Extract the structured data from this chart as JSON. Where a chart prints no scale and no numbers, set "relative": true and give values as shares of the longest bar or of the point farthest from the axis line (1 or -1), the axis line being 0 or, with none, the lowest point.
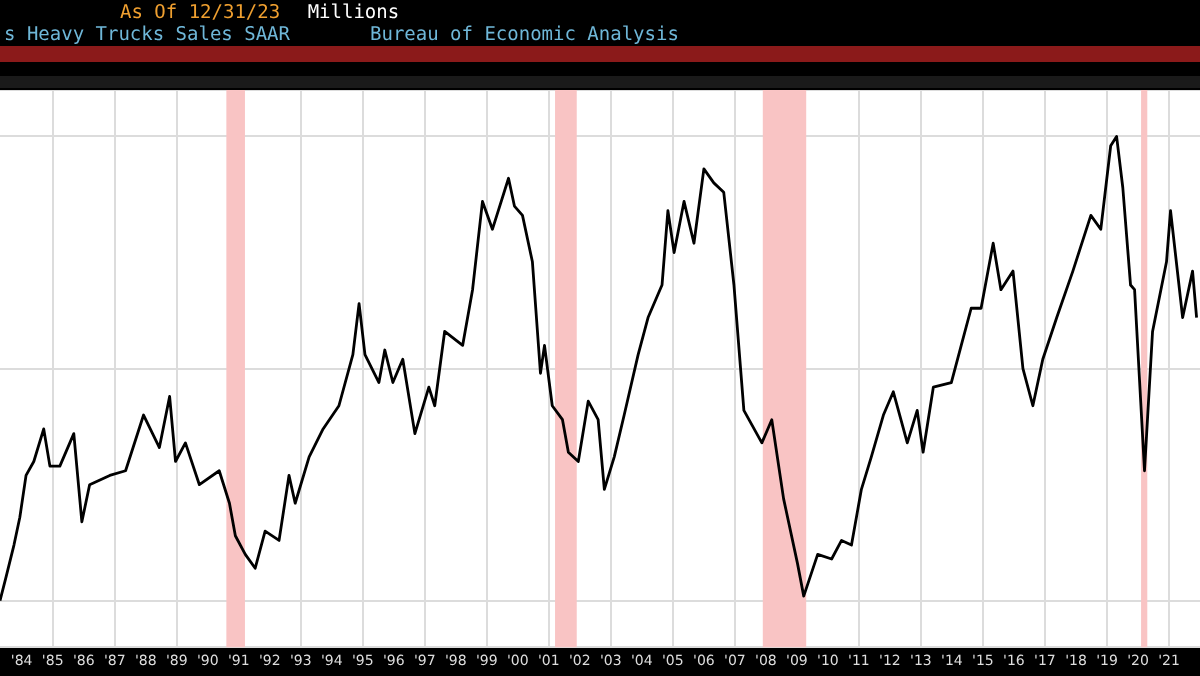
{
  "chart_data": {
    "type": "line",
    "title": "s Heavy Trucks Sales SAAR",
    "annotations": [
      "As Of 12/31/23",
      "Millions",
      "Bureau of Economic Analysis"
    ],
    "relative": true,
    "grid": true,
    "legend": false,
    "marker": "none",
    "line_style": "solid",
    "xlim": [
      1983.3,
      2022.0
    ],
    "xticks": [
      {
        "value": 1984,
        "label": "'84"
      },
      {
        "value": 1985,
        "label": "'85"
      },
      {
        "value": 1986,
        "label": "'86"
      },
      {
        "value": 1987,
        "label": "'87"
      },
      {
        "value": 1988,
        "label": "'88"
      },
      {
        "value": 1989,
        "label": "'89"
      },
      {
        "value": 1990,
        "label": "'90"
      },
      {
        "value": 1991,
        "label": "'91"
      },
      {
        "value": 1992,
        "label": "'92"
      },
      {
        "value": 1993,
        "label": "'93"
      },
      {
        "value": 1994,
        "label": "'94"
      },
      {
        "value": 1995,
        "label": "'95"
      },
      {
        "value": 1996,
        "label": "'96"
      },
      {
        "value": 1997,
        "label": "'97"
      },
      {
        "value": 1998,
        "label": "'98"
      },
      {
        "value": 1999,
        "label": "'99"
      },
      {
        "value": 2000,
        "label": "'00"
      },
      {
        "value": 2001,
        "label": "'01"
      },
      {
        "value": 2002,
        "label": "'02"
      },
      {
        "value": 2003,
        "label": "'03"
      },
      {
        "value": 2004,
        "label": "'04"
      },
      {
        "value": 2005,
        "label": "'05"
      },
      {
        "value": 2006,
        "label": "'06"
      },
      {
        "value": 2007,
        "label": "'07"
      },
      {
        "value": 2008,
        "label": "'08"
      },
      {
        "value": 2009,
        "label": "'09"
      },
      {
        "value": 2010,
        "label": "'10"
      },
      {
        "value": 2011,
        "label": "'11"
      },
      {
        "value": 2012,
        "label": "'12"
      },
      {
        "value": 2013,
        "label": "'13"
      },
      {
        "value": 2014,
        "label": "'14"
      },
      {
        "value": 2015,
        "label": "'15"
      },
      {
        "value": 2016,
        "label": "'16"
      },
      {
        "value": 2017,
        "label": "'17"
      },
      {
        "value": 2018,
        "label": "'18"
      },
      {
        "value": 2019,
        "label": "'19"
      },
      {
        "value": 2020,
        "label": "'20"
      },
      {
        "value": 2021,
        "label": "'21"
      }
    ],
    "bands": [
      {
        "axis": "x",
        "from": 1990.6,
        "to": 1991.2,
        "color": "#f9c4c4"
      },
      {
        "axis": "x",
        "from": 2001.2,
        "to": 2001.9,
        "color": "#f9c4c4"
      },
      {
        "axis": "x",
        "from": 2007.9,
        "to": 2009.3,
        "color": "#f9c4c4"
      },
      {
        "axis": "x",
        "from": 2020.1,
        "to": 2020.3,
        "color": "#f9c4c4"
      }
    ],
    "series": [
      {
        "color": "#000000",
        "x": [
          1983.3,
          1983.49,
          1983.75,
          1983.94,
          1984.14,
          1984.39,
          1984.71,
          1984.91,
          1985.23,
          1985.68,
          1985.94,
          1986.19,
          1986.84,
          1987.35,
          1987.93,
          1988.44,
          1988.77,
          1988.96,
          1989.28,
          1989.73,
          1990.37,
          1990.7,
          1990.89,
          1991.21,
          1991.53,
          1991.85,
          1992.3,
          1992.62,
          1992.82,
          1993.27,
          1993.72,
          1994.23,
          1994.68,
          1994.88,
          1995.07,
          1995.52,
          1995.71,
          1995.97,
          1996.29,
          1996.68,
          1997.13,
          1997.32,
          1997.64,
          1998.22,
          1998.54,
          1998.86,
          1999.18,
          1999.7,
          1999.89,
          2000.15,
          2000.47,
          2000.73,
          2000.86,
          2001.11,
          2001.44,
          2001.63,
          2001.95,
          2002.27,
          2002.59,
          2002.79,
          2003.11,
          2003.43,
          2003.88,
          2004.2,
          2004.65,
          2004.84,
          2005.04,
          2005.36,
          2005.68,
          2006.0,
          2006.32,
          2006.64,
          2006.97,
          2007.29,
          2007.87,
          2008.19,
          2008.57,
          2009.02,
          2009.22,
          2009.67,
          2010.12,
          2010.44,
          2010.76,
          2011.08,
          2011.4,
          2011.79,
          2012.11,
          2012.56,
          2012.88,
          2013.07,
          2013.4,
          2013.98,
          2014.3,
          2014.62,
          2014.94,
          2015.33,
          2015.58,
          2015.97,
          2016.29,
          2016.61,
          2016.93,
          2017.38,
          2017.9,
          2018.48,
          2018.8,
          2019.12,
          2019.31,
          2019.51,
          2019.76,
          2019.89,
          2020.21,
          2020.47,
          2020.92,
          2021.05,
          2021.44,
          2021.76,
          2021.89
        ],
        "values": [
          0,
          0.05,
          0.12,
          0.18,
          0.27,
          0.3,
          0.37,
          0.29,
          0.29,
          0.36,
          0.17,
          0.25,
          0.27,
          0.28,
          0.4,
          0.33,
          0.44,
          0.3,
          0.34,
          0.25,
          0.28,
          0.21,
          0.14,
          0.1,
          0.07,
          0.15,
          0.13,
          0.27,
          0.21,
          0.31,
          0.37,
          0.42,
          0.53,
          0.64,
          0.53,
          0.47,
          0.54,
          0.47,
          0.52,
          0.36,
          0.46,
          0.42,
          0.58,
          0.55,
          0.67,
          0.86,
          0.8,
          0.91,
          0.85,
          0.83,
          0.73,
          0.49,
          0.55,
          0.42,
          0.39,
          0.32,
          0.3,
          0.43,
          0.39,
          0.24,
          0.31,
          0.4,
          0.53,
          0.61,
          0.68,
          0.84,
          0.75,
          0.86,
          0.77,
          0.93,
          0.9,
          0.88,
          0.68,
          0.41,
          0.34,
          0.39,
          0.22,
          0.08,
          0.01,
          0.1,
          0.09,
          0.13,
          0.12,
          0.24,
          0.31,
          0.4,
          0.45,
          0.34,
          0.41,
          0.32,
          0.46,
          0.47,
          0.55,
          0.63,
          0.63,
          0.77,
          0.67,
          0.71,
          0.5,
          0.42,
          0.52,
          0.61,
          0.71,
          0.83,
          0.8,
          0.98,
          1.0,
          0.89,
          0.68,
          0.67,
          0.28,
          0.58,
          0.73,
          0.84,
          0.61,
          0.71,
          0.61
        ]
      }
    ]
  }
}
